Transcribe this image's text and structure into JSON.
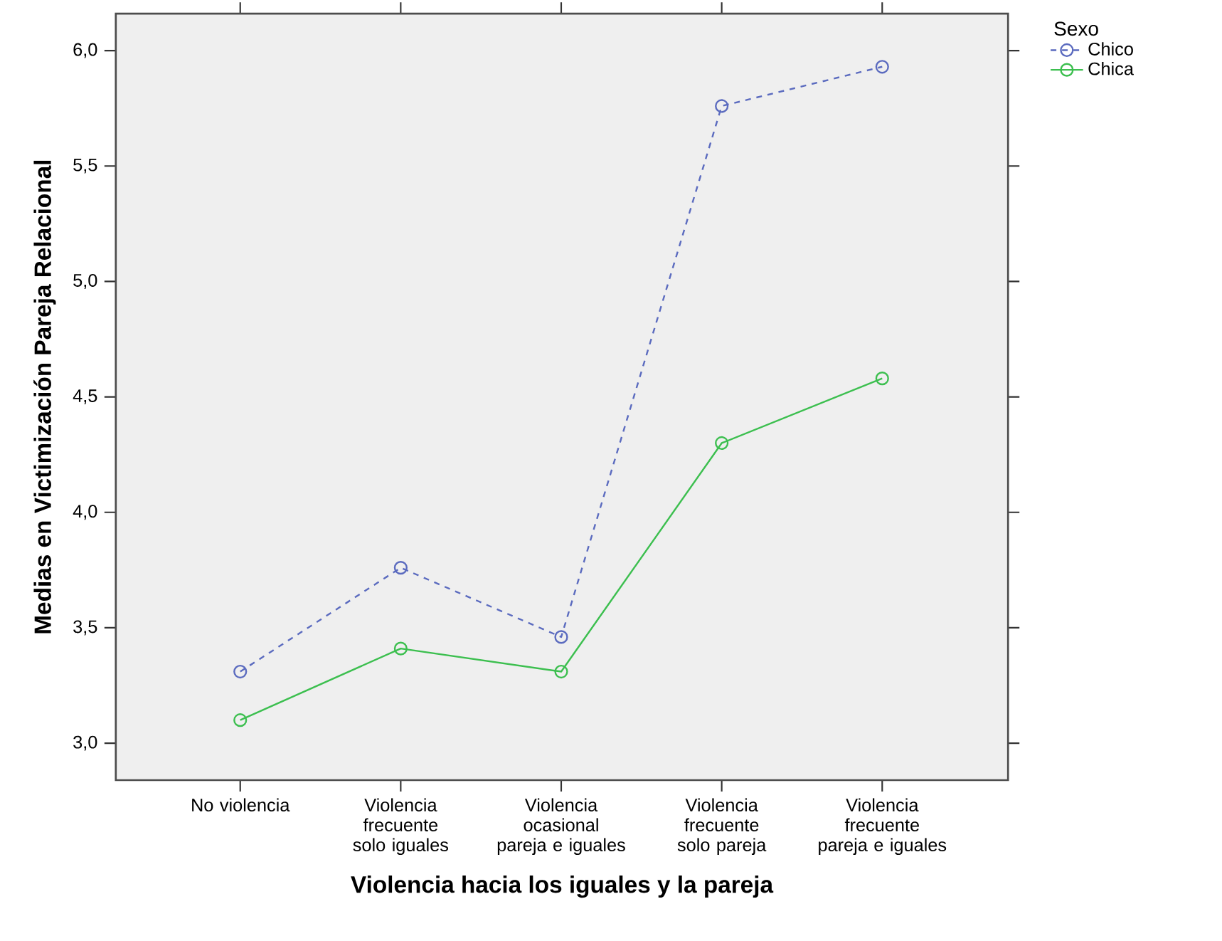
{
  "chart_data": {
    "type": "line",
    "xlabel": "Violencia hacia los iguales y la pareja",
    "ylabel": "Medias en Victimización Pareja Relacional",
    "legend_title": "Sexo",
    "categories": [
      "No violencia",
      "Violencia frecuente solo iguales",
      "Violencia ocasional pareja e iguales",
      "Violencia frecuente solo pareja",
      "Violencia frecuente pareja e iguales"
    ],
    "series": [
      {
        "name": "Chico",
        "color": "#5b6bbf",
        "line_style": "dashed",
        "values": [
          3.31,
          3.76,
          3.46,
          5.76,
          5.93
        ]
      },
      {
        "name": "Chica",
        "color": "#3cbf4f",
        "line_style": "solid",
        "values": [
          3.1,
          3.41,
          3.31,
          4.3,
          4.58
        ]
      }
    ],
    "ylim": [
      2.84,
      6.16
    ],
    "yticks": [
      {
        "value": 3.0,
        "label": "3,0"
      },
      {
        "value": 3.5,
        "label": "3,5"
      },
      {
        "value": 4.0,
        "label": "4,0"
      },
      {
        "value": 4.5,
        "label": "4,5"
      },
      {
        "value": 5.0,
        "label": "5,0"
      },
      {
        "value": 5.5,
        "label": "5,5"
      },
      {
        "value": 6.0,
        "label": "6,0"
      }
    ],
    "marker": "circle",
    "grid": false,
    "legend": "right"
  }
}
